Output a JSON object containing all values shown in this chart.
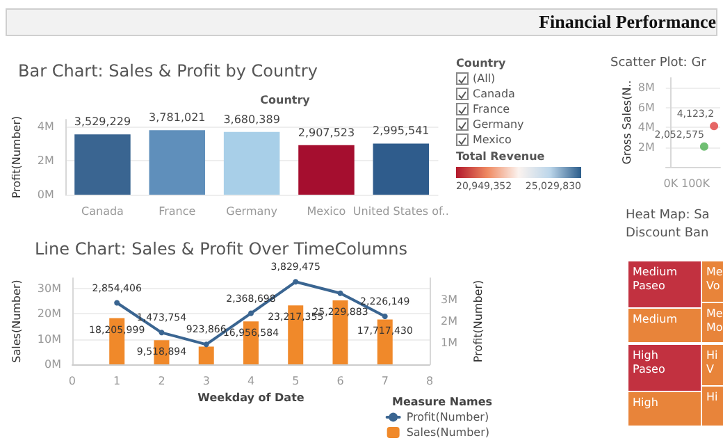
{
  "chart_data": [
    {
      "type": "other",
      "title": "Financial Performance"
    },
    {
      "type": "bar",
      "title": "Bar Chart: Sales & Profit by Country",
      "xlabel": "Country",
      "ylabel": "Profit(Number)",
      "categories": [
        "Canada",
        "France",
        "Germany",
        "Mexico",
        "United States of.."
      ],
      "values": [
        3529229,
        3781021,
        3680389,
        2907523,
        2995541
      ],
      "colors": [
        "#3a6591",
        "#5f8fbb",
        "#a8cfe8",
        "#a50e2f",
        "#2f5c8c"
      ],
      "data_labels": true,
      "value_labels": [
        "3,529,229",
        "3,781,021",
        "3,680,389",
        "2,907,523",
        "2,995,541"
      ],
      "grid": "y",
      "ylim": [
        0,
        4400000
      ],
      "yticks": [
        {
          "value": 0,
          "label": "0M"
        },
        {
          "value": 2000000,
          "label": "2M"
        },
        {
          "value": 4000000,
          "label": "4M"
        }
      ],
      "clabel": "Total Revenue",
      "clim": [
        20949352,
        25029830
      ],
      "cticks": [
        {
          "value": 20949352,
          "label": "20,949,352"
        },
        {
          "value": 25029830,
          "label": "25,029,830"
        }
      ],
      "annotations": [
        "Country",
        "(All)",
        "Canada",
        "France",
        "Germany",
        "Mexico"
      ]
    },
    {
      "type": "bar",
      "title": "Line Chart: Sales & Profit Over TimeColumns",
      "xlabel": "Weekday of Date",
      "ylabel": "Sales(Number)",
      "y2label": "Profit(Number)",
      "x": [
        1,
        2,
        3,
        4,
        5,
        6,
        7
      ],
      "xlim": [
        0,
        8
      ],
      "xticks": [
        0,
        1,
        2,
        3,
        4,
        5,
        6,
        7,
        8
      ],
      "ylim": [
        0,
        34000000
      ],
      "yticks": [
        {
          "value": 0,
          "label": "0M"
        },
        {
          "value": 10000000,
          "label": "10M"
        },
        {
          "value": 20000000,
          "label": "20M"
        },
        {
          "value": 30000000,
          "label": "30M"
        }
      ],
      "y2lim": [
        0,
        4000000
      ],
      "y2ticks": [
        {
          "value": 1000000,
          "label": "1M"
        },
        {
          "value": 2000000,
          "label": "2M"
        },
        {
          "value": 3000000,
          "label": "3M"
        }
      ],
      "grid": "y",
      "legend": "bottom right",
      "legend_title": "Measure Names",
      "series": [
        {
          "name": "Profit(Number)",
          "type": "line",
          "axis": "y2",
          "marker": "circle",
          "color": "#3a6591",
          "values": [
            2854406,
            1473754,
            923866,
            2368698,
            3829475,
            3300000,
            2226149
          ],
          "value_labels": [
            "2,854,406",
            "1,473,754",
            "923,866",
            "2,368,698",
            "3,829,475",
            null,
            "2,226,149"
          ]
        },
        {
          "name": "Sales(Number)",
          "type": "bar",
          "color": "#f0892a",
          "values": [
            18205999,
            9518894,
            7000000,
            16956584,
            23217355,
            25229883,
            17717430
          ],
          "value_labels": [
            "18,205,999",
            "9,518,894",
            null,
            "16,956,584",
            "23,217,355",
            "25,229,883",
            "17,717,430"
          ]
        }
      ]
    },
    {
      "type": "scatter",
      "title": "Scatter Plot: Gr",
      "ylabel": "Gross Sales(N..",
      "x": [
        135000,
        175000
      ],
      "values": [
        2052575,
        4123200
      ],
      "colors": [
        "#4caf50",
        "#e0403f"
      ],
      "value_labels": [
        "2,052,575",
        "4,123,2"
      ],
      "xlim": [
        -20000,
        200000
      ],
      "xticks": [
        {
          "value": 0,
          "label": "0K"
        },
        {
          "value": 100000,
          "label": "100K"
        }
      ],
      "ylim": [
        0,
        9000000
      ],
      "yticks": [
        {
          "value": 2000000,
          "label": "2M"
        },
        {
          "value": 4000000,
          "label": "4M"
        },
        {
          "value": 6000000,
          "label": "6M"
        },
        {
          "value": 8000000,
          "label": "8M"
        }
      ],
      "grid": "y",
      "marker": "circle"
    },
    {
      "type": "other",
      "title": "Heat Map: Sa",
      "subtitle": "Discount Ban",
      "categories": [
        "Medium\nPaseo",
        "Medium",
        "Me\nVo",
        "Me\nMo",
        "High\nPaseo",
        "High",
        "Hi\nV",
        "Hi"
      ],
      "colors": [
        "#c23140",
        "#e8843a",
        "#e8843a",
        "#e8843a",
        "#c23140",
        "#e8843a",
        "#e8843a",
        "#e8843a"
      ]
    }
  ]
}
